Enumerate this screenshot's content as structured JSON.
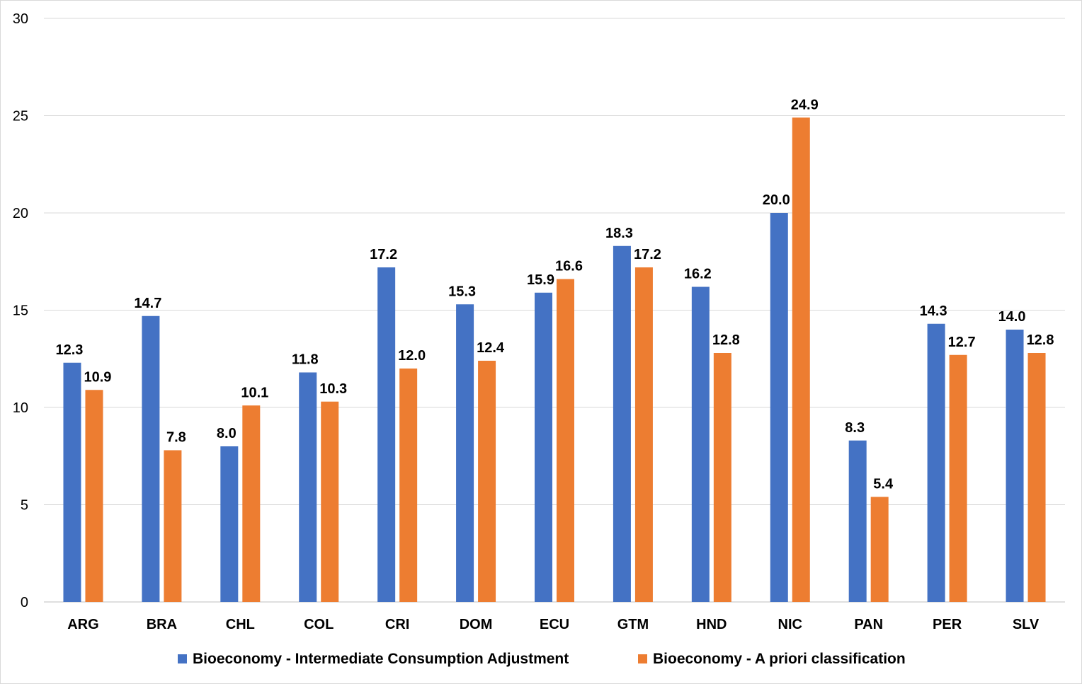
{
  "chart_data": {
    "type": "bar",
    "categories": [
      "ARG",
      "BRA",
      "CHL",
      "COL",
      "CRI",
      "DOM",
      "ECU",
      "GTM",
      "HND",
      "NIC",
      "PAN",
      "PER",
      "SLV"
    ],
    "series": [
      {
        "name": "Bioeconomy - Intermediate Consumption Adjustment",
        "color": "#4472c4",
        "values": [
          12.3,
          14.7,
          8.0,
          11.8,
          17.2,
          15.3,
          15.9,
          18.3,
          16.2,
          20.0,
          8.3,
          14.3,
          14.0
        ],
        "labels": [
          "12.3",
          "14.7",
          "8.0",
          "11.8",
          "17.2",
          "15.3",
          "15.9",
          "18.3",
          "16.2",
          "20.0",
          "8.3",
          "14.3",
          "14.0"
        ]
      },
      {
        "name": "Bioeconomy - A priori classification",
        "color": "#ed7d31",
        "values": [
          10.9,
          7.8,
          10.1,
          10.3,
          12.0,
          12.4,
          16.6,
          17.2,
          12.8,
          24.9,
          5.4,
          12.7,
          12.8
        ],
        "labels": [
          "10.9",
          "7.8",
          "10.1",
          "10.3",
          "12.0",
          "12.4",
          "16.6",
          "17.2",
          "12.8",
          "24.9",
          "5.4",
          "12.7",
          "12.8"
        ]
      }
    ],
    "yticks": [
      "0",
      "5",
      "10",
      "15",
      "20",
      "25",
      "30"
    ],
    "ylim": [
      0,
      30
    ],
    "grid": true,
    "legend": "bottom"
  }
}
